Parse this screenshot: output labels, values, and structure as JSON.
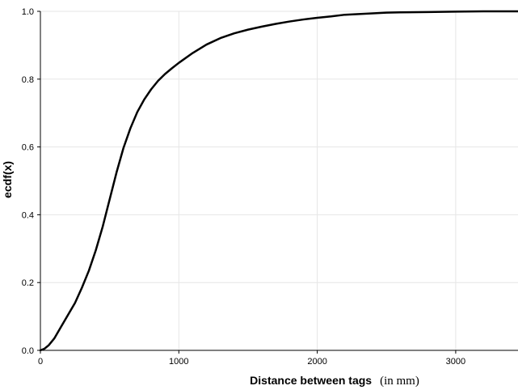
{
  "chart_data": {
    "type": "line",
    "title": "",
    "xlabel": "Distance between tags",
    "xlabel_unit": "(in mm)",
    "ylabel": "ecdf(x)",
    "xlim": [
      0,
      3450
    ],
    "ylim": [
      0,
      1.0
    ],
    "grid": true,
    "x_ticks": [
      0,
      1000,
      2000,
      3000
    ],
    "x_tick_labels": [
      "0",
      "1000",
      "2000",
      "3000"
    ],
    "y_ticks": [
      0,
      0.2,
      0.4,
      0.6,
      0.8,
      1.0
    ],
    "y_tick_labels": [
      "0.0",
      "0.2",
      "0.4",
      "0.6",
      "0.8",
      "1.0"
    ],
    "line_color": "#000000",
    "grid_color": "#e6e6e6",
    "series": [
      {
        "x": [
          0,
          30,
          60,
          100,
          150,
          200,
          250,
          300,
          350,
          400,
          450,
          500,
          550,
          600,
          650,
          700,
          750,
          800,
          850,
          900,
          950,
          1000,
          1100,
          1200,
          1300,
          1400,
          1500,
          1600,
          1700,
          1800,
          1900,
          2000,
          2100,
          2200,
          2300,
          2400,
          2500,
          2600,
          2800,
          3000,
          3200,
          3450
        ],
        "y": [
          0.0,
          0.005,
          0.015,
          0.035,
          0.07,
          0.105,
          0.14,
          0.185,
          0.235,
          0.295,
          0.365,
          0.445,
          0.525,
          0.597,
          0.655,
          0.703,
          0.74,
          0.77,
          0.795,
          0.815,
          0.832,
          0.848,
          0.877,
          0.902,
          0.921,
          0.935,
          0.946,
          0.955,
          0.963,
          0.97,
          0.976,
          0.981,
          0.985,
          0.99,
          0.992,
          0.994,
          0.996,
          0.997,
          0.998,
          0.999,
          1.0,
          1.0
        ]
      }
    ]
  }
}
